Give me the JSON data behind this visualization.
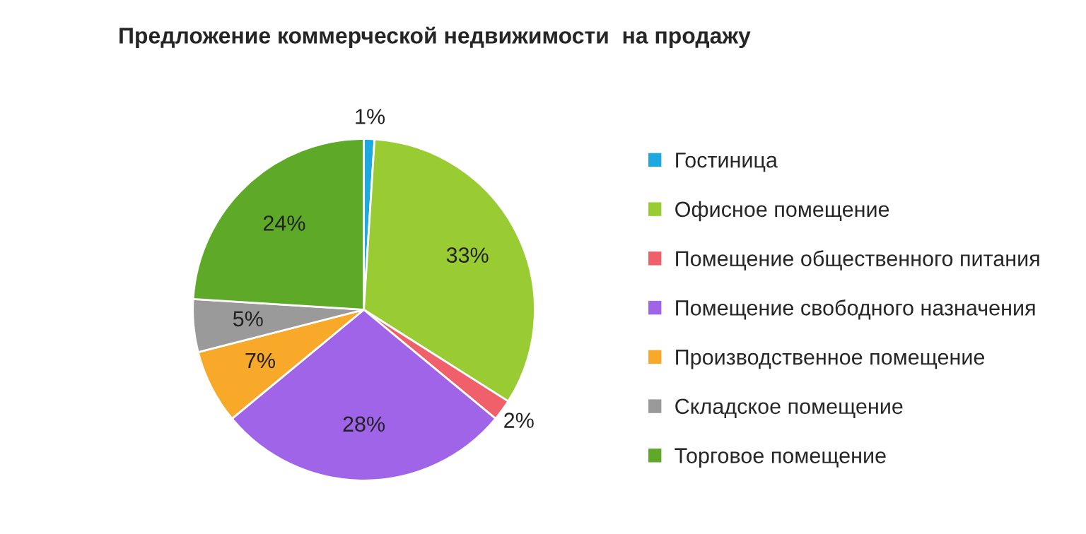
{
  "chart_data": {
    "type": "pie",
    "title": "Предложение коммерческой недвижимости  на продажу",
    "categories": [
      "Гостиница",
      "Офисное помещение",
      "Помещение общественного питания",
      "Помещение свободного назначения",
      "Производственное помещение",
      "Складское помещение",
      "Торговое помещение"
    ],
    "values": [
      1,
      33,
      2,
      28,
      7,
      5,
      24
    ],
    "value_labels": [
      "1%",
      "33%",
      "2%",
      "28%",
      "7%",
      "5%",
      "24%"
    ],
    "colors": [
      "#1ea8e0",
      "#99cc33",
      "#f0606a",
      "#a064e8",
      "#f8a92a",
      "#9a9a9a",
      "#5ea928"
    ],
    "legend": "right"
  }
}
